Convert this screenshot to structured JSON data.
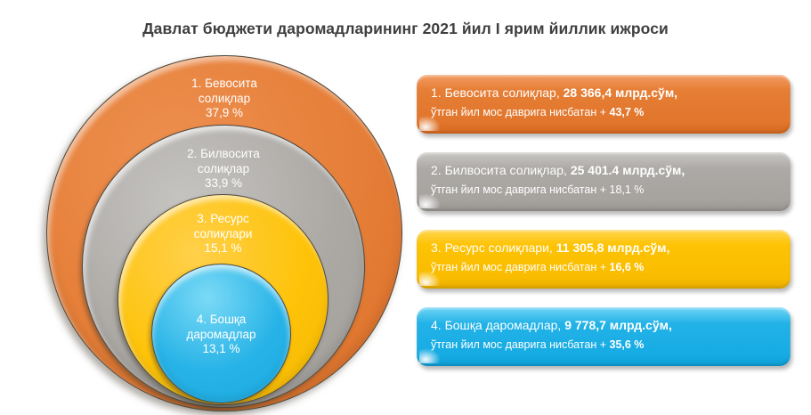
{
  "page": {
    "title": "Давлат бюджети даромадларининг 2021 йил I ярим йиллик ижроси",
    "background_color": "#FFFFFF",
    "title_color": "#3F3F3F"
  },
  "chart_data": {
    "type": "pie",
    "variant": "nested-proportional-circles",
    "title": "Давлат бюджети даромадларининг 2021 йил I ярим йиллик ижроси",
    "unit": "млрд.сўм",
    "legend_position": "right",
    "categories": [
      "Бевосита солиқлар",
      "Билвосита солиқлар",
      "Ресурс солиқлари",
      "Бошқа даромадлар"
    ],
    "share_percent": [
      37.9,
      33.9,
      15.1,
      13.1
    ],
    "amount_mlrd_sum": [
      28366.4,
      25401.4,
      11305.8,
      9778.7
    ],
    "growth_vs_prev_year_percent": [
      43.7,
      18.1,
      16.6,
      35.6
    ],
    "colors": [
      "#E57E38",
      "#ABA9A6",
      "#FEC303",
      "#1FB0E5"
    ]
  },
  "bubbles": [
    {
      "line1": "1. Бевосита",
      "line2": "солиқлар",
      "line3": "37,9 %"
    },
    {
      "line1": "2. Билвосита",
      "line2": "солиқлар",
      "line3": "33,9 %"
    },
    {
      "line1": "3. Ресурс",
      "line2": "солиқлари",
      "line3": "15,1 %"
    },
    {
      "line1": "4. Бошқа",
      "line2": "даромадлар",
      "line3": "13,1 %"
    }
  ],
  "legend": [
    {
      "label": "1. Бевосита солиқлар, ",
      "value": "28 366,4 млрд.сўм,",
      "note": "ўтган йил мос даврига нисбатан + ",
      "growth": "43,7 %"
    },
    {
      "label": "2. Билвосита солиқлар, ",
      "value": "25 401.4 млрд.сўм,",
      "note": "ўтган йил мос даврига нисбатан + 18,1 %",
      "growth": ""
    },
    {
      "label": "3. Ресурс солиқлари, ",
      "value": "11 305,8 млрд.сўм,",
      "note": "ўтган йил мос даврига нисбатан + ",
      "growth": "16,6 %"
    },
    {
      "label": "4. Бошқа даромадлар, ",
      "value": "9 778,7 млрд.сўм,",
      "note": "ўтган йил мос даврига нисбатан + ",
      "growth": "35,6 %"
    }
  ]
}
